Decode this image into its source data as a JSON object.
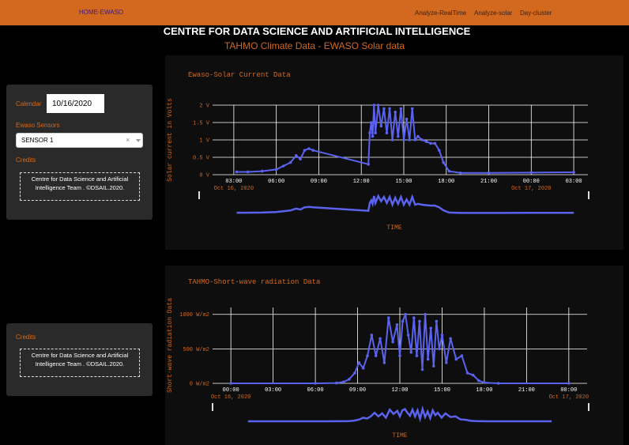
{
  "nav": {
    "brand": "HOME-EWASO",
    "links": [
      "Analyze-RealTime",
      "Analyze-solar",
      "Day-cluster"
    ]
  },
  "header": {
    "title": "CENTRE FOR DATA SCIENCE AND ARTIFICIAL INTELLIGENCE",
    "subtitle": "TAHMO Climate Data - EWASO Solar data"
  },
  "sidebar": {
    "calendar_label": "Calendar",
    "calendar_value": "10/16/2020",
    "sensors_label": "Ewaso Sensors",
    "sensor_selected": "SENSOR 1",
    "clear_glyph": "×",
    "credits_label": "Credits",
    "credits_line1": "Centre for Data Science and Artificial",
    "credits_line2": "Intelligence Team . ©DSAIL.2020."
  },
  "sidebar2": {
    "credits_label": "Credits",
    "credits_line1": "Centre for Data Science and Artificial",
    "credits_line2": "Intelligence Team . ©DSAIL.2020."
  },
  "colors": {
    "accent": "#d2691e",
    "series": "#5b63ee",
    "background": "#000000",
    "panel": "#2a2a2a"
  },
  "chart_data": [
    {
      "type": "line",
      "title": "Ewaso-Solar Current Data",
      "xlabel": "TIME",
      "ylabel": "Solar current in Volts",
      "x_range": [
        "2020-10-16 01:30",
        "2020-10-17 04:00"
      ],
      "ylim": [
        0,
        2
      ],
      "xticks": [
        "03:00",
        "06:00",
        "09:00",
        "12:00",
        "15:00",
        "18:00",
        "21:00",
        "00:00",
        "03:00"
      ],
      "xtick_hours": [
        3,
        6,
        9,
        12,
        15,
        18,
        21,
        24,
        27
      ],
      "x_date_labels": [
        {
          "hour": 3,
          "text": "Oct 16, 2020"
        },
        {
          "hour": 24,
          "text": "Oct 17, 2020"
        }
      ],
      "yticks": [
        "0 V",
        "0.5 V",
        "1 V",
        "1.5 V",
        "2 V"
      ],
      "ytick_values": [
        0,
        0.5,
        1,
        1.5,
        2
      ],
      "grid": true,
      "has_range_slider": true,
      "series": [
        {
          "hours": [
            3.2,
            4,
            5,
            6,
            6.5,
            7,
            7.4,
            7.7,
            8,
            8.3,
            8.6,
            12.5,
            12.6,
            12.7,
            12.8,
            12.9,
            13,
            13.2,
            13.4,
            13.6,
            13.8,
            14,
            14.2,
            14.4,
            14.6,
            14.8,
            15,
            15.2,
            15.4,
            15.6,
            15.8,
            16,
            16.3,
            16.6,
            16.9,
            17.2,
            17.5,
            17.8,
            18.2,
            19,
            21,
            24,
            27
          ],
          "values": [
            0.08,
            0.08,
            0.1,
            0.15,
            0.25,
            0.35,
            0.55,
            0.45,
            0.7,
            0.75,
            0.7,
            0.3,
            1.2,
            1.5,
            1.1,
            2.0,
            1.2,
            2.0,
            1.4,
            1.9,
            1.2,
            1.9,
            1.0,
            1.8,
            1.1,
            1.9,
            1.0,
            1.6,
            1.0,
            1.9,
            1.0,
            1.1,
            1.0,
            0.95,
            0.9,
            0.9,
            0.7,
            0.35,
            0.1,
            0.05,
            0.05,
            0.06,
            0.07
          ]
        }
      ]
    },
    {
      "type": "line",
      "title": "TAHMO-Short-wave radiation Data",
      "xlabel": "TIME",
      "ylabel": "Short-wave radiation Data",
      "x_range": [
        "2020-10-16 00:00",
        "2020-10-17 00:00"
      ],
      "ylim": [
        0,
        1100
      ],
      "xticks": [
        "00:00",
        "03:00",
        "06:00",
        "09:00",
        "12:00",
        "15:00",
        "18:00",
        "21:00",
        "00:00"
      ],
      "xtick_hours": [
        0,
        3,
        6,
        9,
        12,
        15,
        18,
        21,
        24
      ],
      "x_date_labels": [
        {
          "hour": 0,
          "text": "Oct 16, 2020"
        },
        {
          "hour": 24,
          "text": "Oct 17, 2020"
        }
      ],
      "yticks": [
        "0 W/m2",
        "500 W/m2",
        "1000 W/m2"
      ],
      "ytick_values": [
        0,
        500,
        1000
      ],
      "grid": true,
      "has_range_slider": true,
      "series": [
        {
          "hours": [
            0,
            6,
            7.5,
            8,
            8.4,
            8.8,
            9.1,
            9.4,
            9.7,
            10,
            10.3,
            10.6,
            10.9,
            11.2,
            11.5,
            11.8,
            12,
            12.2,
            12.4,
            12.6,
            12.8,
            13,
            13.2,
            13.4,
            13.6,
            13.8,
            14,
            14.2,
            14.4,
            14.6,
            14.8,
            15,
            15.3,
            15.6,
            16,
            16.4,
            16.8,
            17.2,
            17.6,
            18,
            19,
            24
          ],
          "values": [
            0,
            0,
            5,
            20,
            60,
            150,
            300,
            220,
            400,
            700,
            400,
            650,
            300,
            950,
            600,
            850,
            400,
            900,
            1000,
            700,
            450,
            950,
            400,
            900,
            200,
            1000,
            350,
            800,
            250,
            900,
            500,
            700,
            300,
            650,
            350,
            400,
            150,
            120,
            40,
            10,
            0,
            0
          ]
        }
      ]
    }
  ]
}
